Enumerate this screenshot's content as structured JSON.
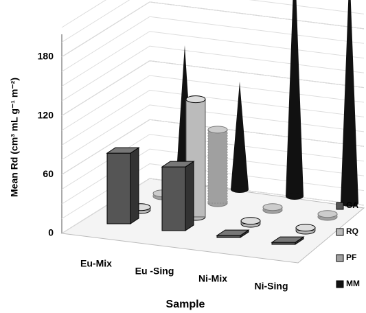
{
  "chart_data": {
    "type": "bar3d",
    "ylabel": "Mean Rd (cm³ mL g⁻¹ m⁻²)",
    "xlabel": "Sample",
    "categories": [
      "Eu-Mix",
      "Eu -Sing",
      "Ni-Mix",
      "Ni-Sing"
    ],
    "series": [
      {
        "name": "GA",
        "color": "#555555",
        "values": [
          72,
          65,
          2,
          2
        ]
      },
      {
        "name": "RQ",
        "color": "#bbbbbb",
        "values": [
          3,
          120,
          3,
          3
        ]
      },
      {
        "name": "PF",
        "color": "#a0a0a0",
        "values": [
          3,
          75,
          3,
          3
        ]
      },
      {
        "name": "MM",
        "color": "#111111",
        "values": [
          140,
          110,
          250,
          240
        ]
      }
    ],
    "ylim": [
      0,
      210
    ],
    "yticks": [
      0,
      60,
      120,
      180
    ],
    "grid": true,
    "legend": "right"
  }
}
